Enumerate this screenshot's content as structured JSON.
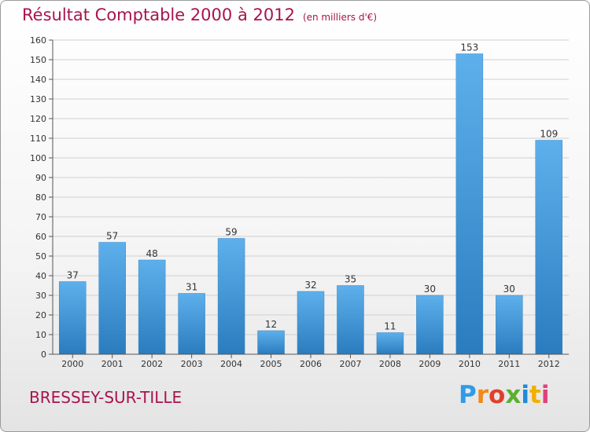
{
  "header": {
    "title": "Résultat Comptable 2000 à 2012",
    "unit": "(en milliers d'€)"
  },
  "commune": "BRESSEY-SUR-TILLE",
  "logo": {
    "letters": [
      "P",
      "r",
      "o",
      "x",
      "i",
      "t",
      "i"
    ],
    "colors": [
      "#2d9be8",
      "#f08a1c",
      "#e0402a",
      "#5ab030",
      "#1f8ad8",
      "#f0b000",
      "#e04080"
    ]
  },
  "colors": {
    "title": "#a8144e",
    "bar_light": "#5eb0ec",
    "bar_dark": "#2a7cbe",
    "grid": "#d0d0d0",
    "axis": "#555555"
  },
  "chart_data": {
    "type": "bar",
    "categories": [
      "2000",
      "2001",
      "2002",
      "2003",
      "2004",
      "2005",
      "2006",
      "2007",
      "2008",
      "2009",
      "2010",
      "2011",
      "2012"
    ],
    "values": [
      37,
      57,
      48,
      31,
      59,
      12,
      32,
      35,
      11,
      30,
      153,
      30,
      109
    ],
    "title": "Résultat Comptable 2000 à 2012",
    "ylabel": "",
    "xlabel": "",
    "ylim": [
      0,
      160
    ],
    "yticks": [
      0,
      10,
      20,
      30,
      40,
      50,
      60,
      70,
      80,
      90,
      100,
      110,
      120,
      130,
      140,
      150,
      160
    ],
    "grid": true,
    "data_labels": true
  }
}
